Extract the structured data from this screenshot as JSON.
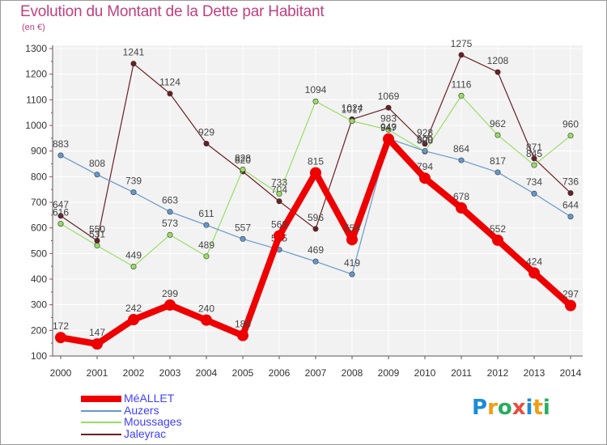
{
  "title": "Evolution du Montant de la Dette par Habitant",
  "subtitle": "(en €)",
  "logo": {
    "text": "Proxiti",
    "letters": [
      {
        "ch": "P",
        "color": "#1a8cd8"
      },
      {
        "ch": "r",
        "color": "#f39c12"
      },
      {
        "ch": "o",
        "color": "#27ae60"
      },
      {
        "ch": "x",
        "color": "#e74c3c"
      },
      {
        "ch": "i",
        "color": "#1a8cd8"
      },
      {
        "ch": "t",
        "color": "#f39c12"
      },
      {
        "ch": "i",
        "color": "#27ae60"
      }
    ]
  },
  "chart_data": {
    "type": "line",
    "title": "Evolution du Montant de la Dette par Habitant",
    "subtitle": "(en €)",
    "x": [
      2000,
      2001,
      2002,
      2003,
      2004,
      2005,
      2006,
      2007,
      2008,
      2009,
      2010,
      2011,
      2012,
      2013,
      2014
    ],
    "ylim": [
      100,
      1300
    ],
    "yticks": [
      100,
      200,
      300,
      400,
      500,
      600,
      700,
      800,
      900,
      1000,
      1100,
      1200,
      1300
    ],
    "grid": true,
    "legend_position": "bottom-left",
    "series": [
      {
        "name": "Jaleyrac",
        "color": "#6b1f24",
        "values": [
          647,
          550,
          1241,
          1124,
          929,
          820,
          704,
          596,
          1024,
          1069,
          928,
          1275,
          1208,
          871,
          736
        ]
      },
      {
        "name": "Moussages",
        "color": "#99dd66",
        "values": [
          616,
          531,
          449,
          573,
          489,
          828,
          733,
          1094,
          1017,
          983,
          898,
          1116,
          962,
          845,
          960
        ]
      },
      {
        "name": "Auzers",
        "color": "#6699cc",
        "values": [
          883,
          808,
          739,
          663,
          611,
          557,
          515,
          469,
          419,
          949,
          900,
          864,
          817,
          734,
          644
        ]
      },
      {
        "name": "MéALLET",
        "color": "#ee0000",
        "values": [
          172,
          147,
          242,
          299,
          240,
          180,
          569,
          815,
          554,
          947,
          794,
          678,
          552,
          424,
          297
        ]
      }
    ]
  }
}
